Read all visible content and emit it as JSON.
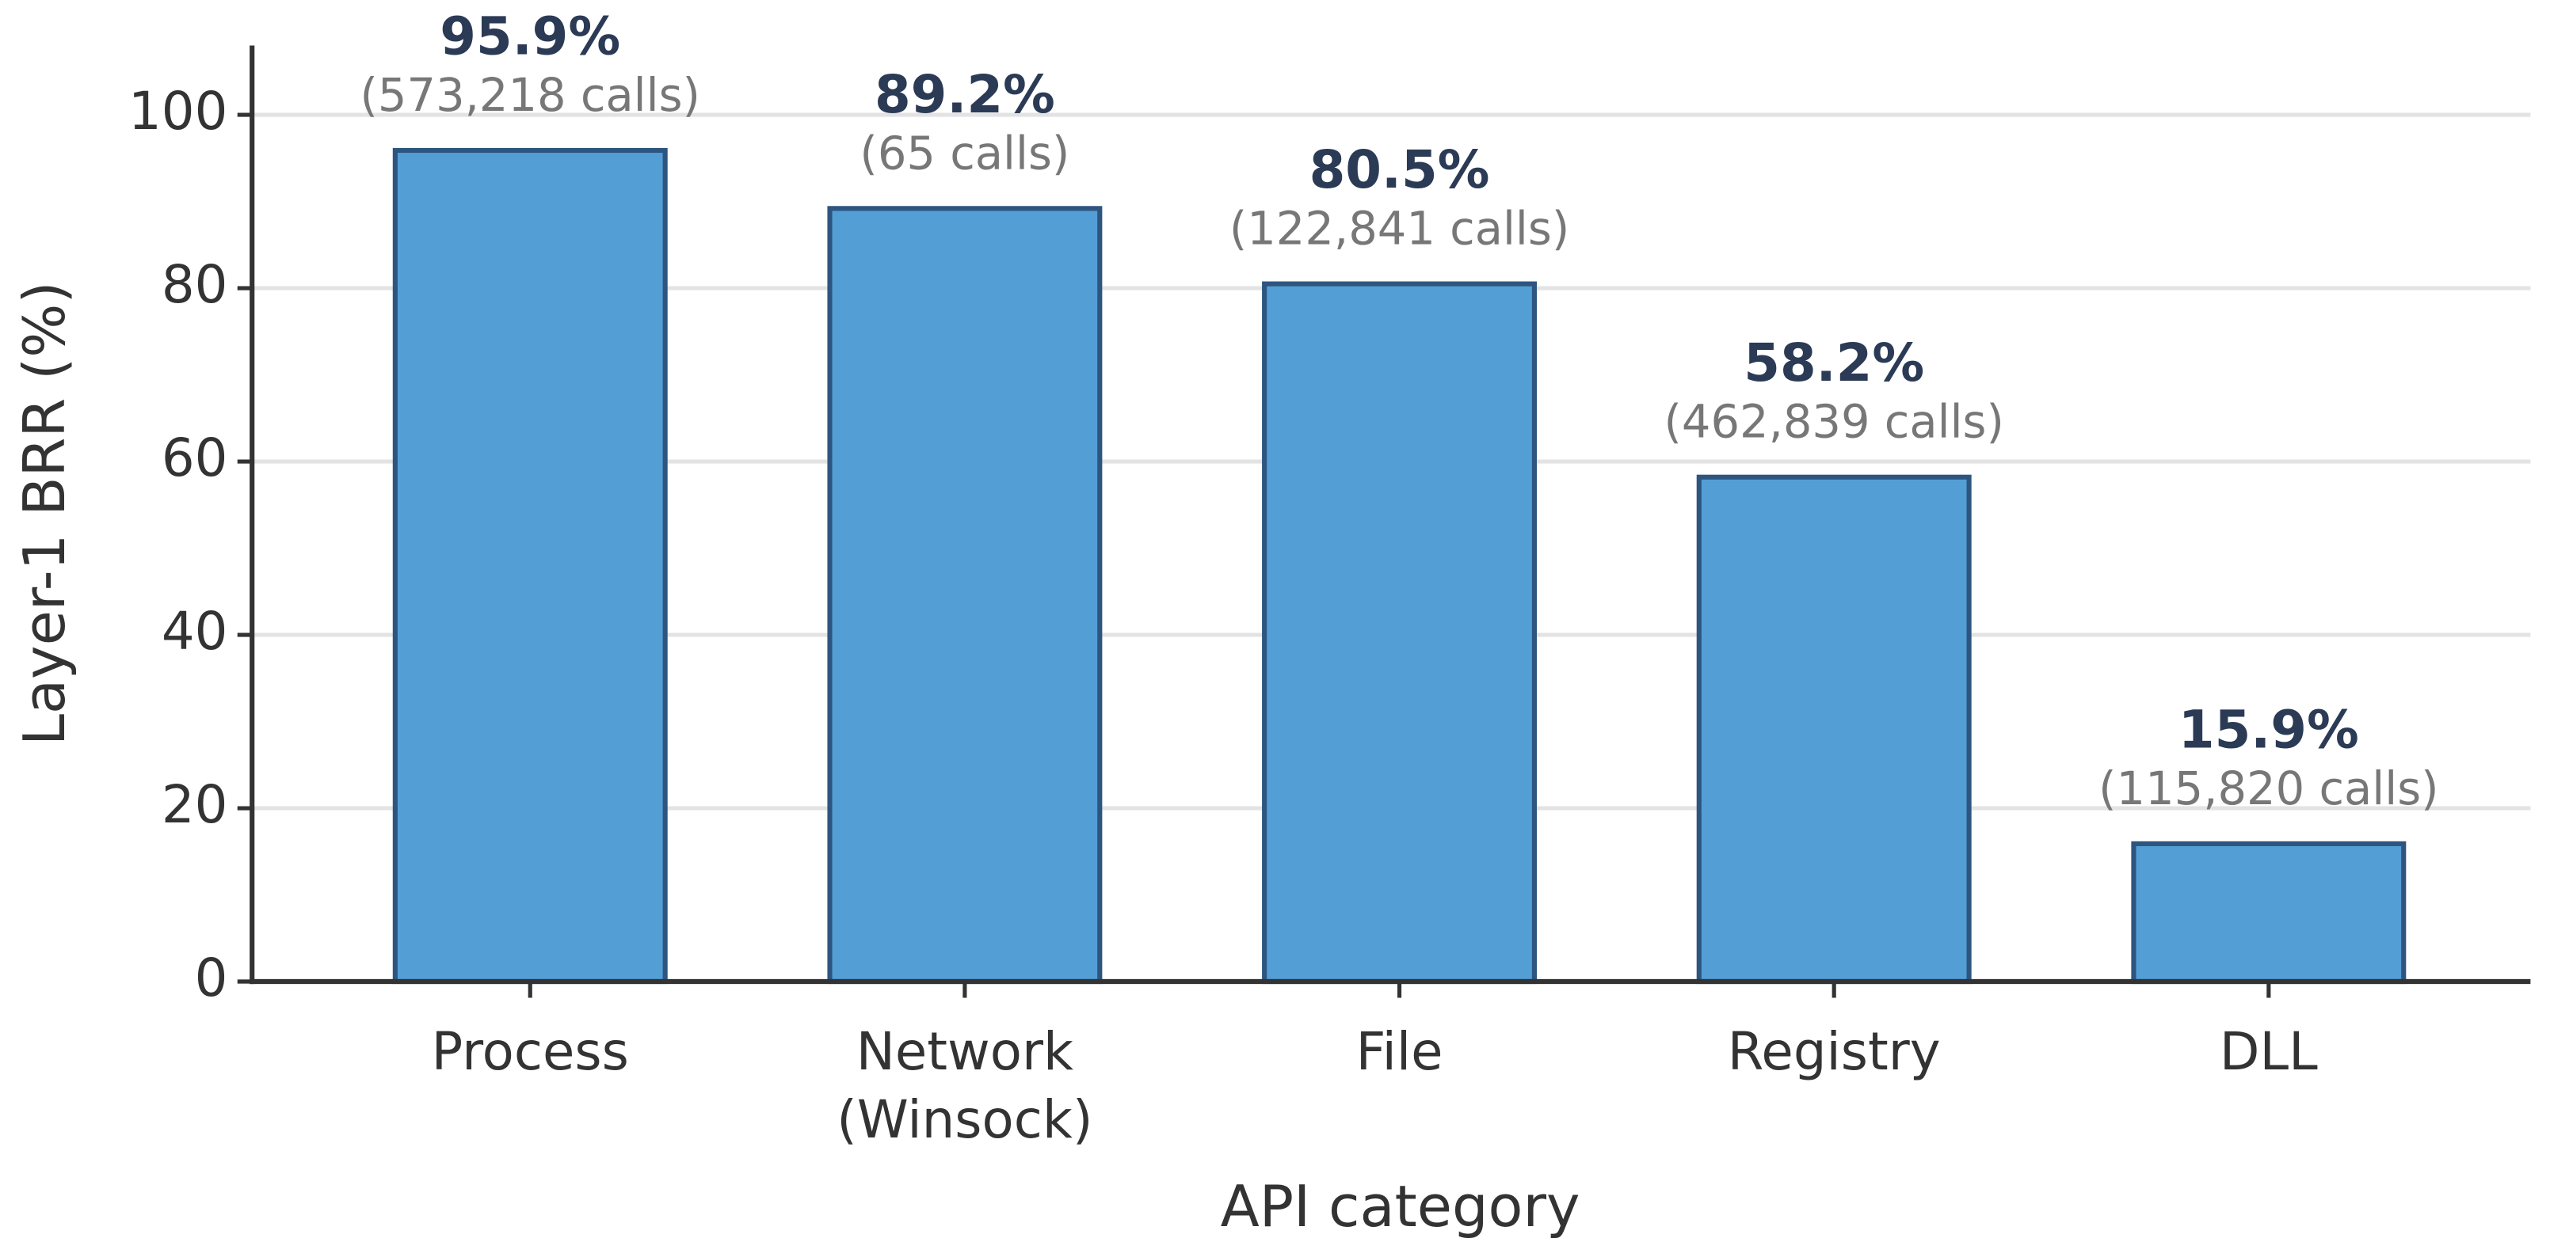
{
  "chart_data": {
    "type": "bar",
    "xlabel": "API category",
    "ylabel": "Layer-1 BRR (%)",
    "categories": [
      "Process",
      "Network\n(Winsock)",
      "File",
      "Registry",
      "DLL"
    ],
    "values": [
      95.9,
      89.2,
      80.5,
      58.2,
      15.9
    ],
    "value_labels": [
      "95.9%",
      "89.2%",
      "80.5%",
      "58.2%",
      "15.9%"
    ],
    "calls": [
      573218,
      65,
      122841,
      462839,
      115820
    ],
    "call_labels": [
      "(573,218 calls)",
      "(65 calls)",
      "(122,841 calls)",
      "(462,839 calls)",
      "(115,820 calls)"
    ],
    "color": "#539fd5",
    "edge_color": "#2e5580",
    "ylim": [
      0,
      108
    ],
    "yticks": [
      0,
      20,
      40,
      60,
      80,
      100
    ],
    "grid": true
  }
}
